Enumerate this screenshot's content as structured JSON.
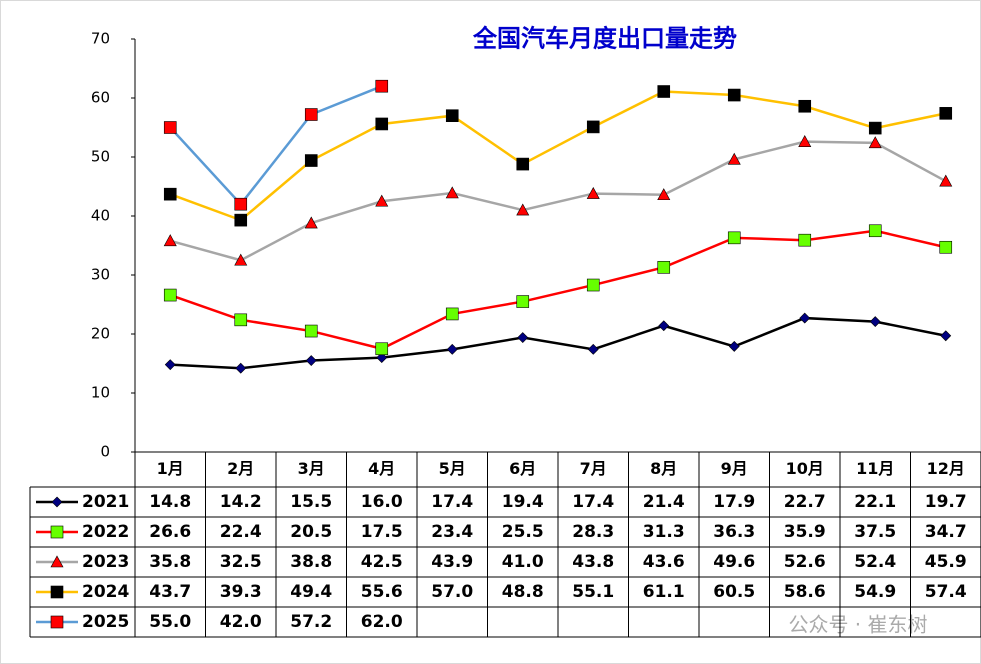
{
  "chart_data": {
    "type": "line",
    "title": "全国汽车月度出口量走势",
    "categories": [
      "1月",
      "2月",
      "3月",
      "4月",
      "5月",
      "6月",
      "7月",
      "8月",
      "9月",
      "10月",
      "11月",
      "12月"
    ],
    "ylim": [
      0,
      70
    ],
    "yticks": [
      0,
      10,
      20,
      30,
      40,
      50,
      60,
      70
    ],
    "series": [
      {
        "name": "2021",
        "color": "#000000",
        "marker": "diamond",
        "marker_color": "#000080",
        "values": [
          14.8,
          14.2,
          15.5,
          16.0,
          17.4,
          19.4,
          17.4,
          21.4,
          17.9,
          22.7,
          22.1,
          19.7
        ],
        "value_labels": [
          "14.8",
          "14.2",
          "15.5",
          "16.0",
          "17.4",
          "19.4",
          "17.4",
          "21.4",
          "17.9",
          "22.7",
          "22.1",
          "19.7"
        ]
      },
      {
        "name": "2022",
        "color": "#ff0000",
        "marker": "square",
        "marker_color": "#66ff00",
        "values": [
          26.6,
          22.4,
          20.5,
          17.5,
          23.4,
          25.5,
          28.3,
          31.3,
          36.3,
          35.9,
          37.5,
          34.7
        ],
        "value_labels": [
          "26.6",
          "22.4",
          "20.5",
          "17.5",
          "23.4",
          "25.5",
          "28.3",
          "31.3",
          "36.3",
          "35.9",
          "37.5",
          "34.7"
        ]
      },
      {
        "name": "2023",
        "color": "#a6a6a6",
        "marker": "triangle",
        "marker_color": "#ff0000",
        "values": [
          35.8,
          32.5,
          38.8,
          42.5,
          43.9,
          41.0,
          43.8,
          43.6,
          49.6,
          52.6,
          52.4,
          45.9
        ],
        "value_labels": [
          "35.8",
          "32.5",
          "38.8",
          "42.5",
          "43.9",
          "41.0",
          "43.8",
          "43.6",
          "49.6",
          "52.6",
          "52.4",
          "45.9"
        ]
      },
      {
        "name": "2024",
        "color": "#ffc000",
        "marker": "square",
        "marker_color": "#000000",
        "values": [
          43.7,
          39.3,
          49.4,
          55.6,
          57.0,
          48.8,
          55.1,
          61.1,
          60.5,
          58.6,
          54.9,
          57.4
        ],
        "value_labels": [
          "43.7",
          "39.3",
          "49.4",
          "55.6",
          "57.0",
          "48.8",
          "55.1",
          "61.1",
          "60.5",
          "58.6",
          "54.9",
          "57.4"
        ]
      },
      {
        "name": "2025",
        "color": "#5b9bd5",
        "marker": "square",
        "marker_color": "#ff0000",
        "values": [
          55.0,
          42.0,
          57.2,
          62.0,
          null,
          null,
          null,
          null,
          null,
          null,
          null,
          null
        ],
        "value_labels": [
          "55.0",
          "42.0",
          "57.2",
          "62.0",
          null,
          null,
          null,
          null,
          null,
          null,
          null,
          null
        ]
      }
    ],
    "watermark": "公众号 · 崔东树"
  }
}
